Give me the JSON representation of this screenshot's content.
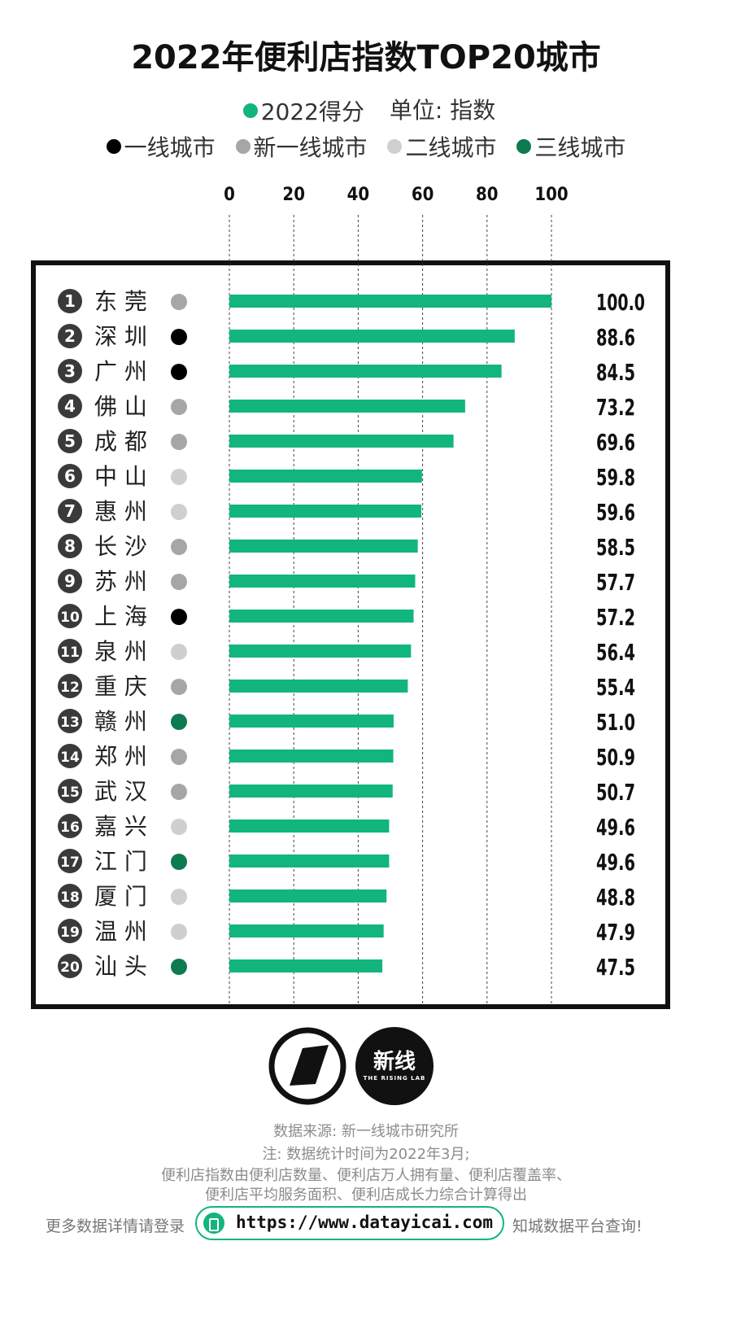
{
  "title": "2022年便利店指数TOP20城市",
  "legend": {
    "score_label": "2022得分",
    "unit_label": "单位: 指数",
    "tiers": [
      {
        "label": "一线城市",
        "color": "#000000"
      },
      {
        "label": "新一线城市",
        "color": "#a6a6a6"
      },
      {
        "label": "二线城市",
        "color": "#cfcfcf"
      },
      {
        "label": "三线城市",
        "color": "#0e7a50"
      }
    ]
  },
  "colors": {
    "bar": "#12b57c",
    "frame": "#111111",
    "rank_badge": "#3a3a3a"
  },
  "chart_data": {
    "type": "bar",
    "orientation": "horizontal",
    "title": "2022年便利店指数TOP20城市",
    "series": [
      {
        "name": "2022得分",
        "values": [
          100.0,
          88.6,
          84.5,
          73.2,
          69.6,
          59.8,
          59.6,
          58.5,
          57.7,
          57.2,
          56.4,
          55.4,
          51.0,
          50.9,
          50.7,
          49.6,
          49.6,
          48.8,
          47.9,
          47.5
        ]
      }
    ],
    "categories": [
      "东 莞",
      "深 圳",
      "广 州",
      "佛 山",
      "成 都",
      "中 山",
      "惠 州",
      "长 沙",
      "苏 州",
      "上 海",
      "泉 州",
      "重 庆",
      "赣 州",
      "郑 州",
      "武 汉",
      "嘉 兴",
      "江 门",
      "厦 门",
      "温 州",
      "汕 头"
    ],
    "ranks": [
      "1",
      "2",
      "3",
      "4",
      "5",
      "6",
      "7",
      "8",
      "9",
      "10",
      "11",
      "12",
      "13",
      "14",
      "15",
      "16",
      "17",
      "18",
      "19",
      "20"
    ],
    "value_labels": [
      "100.0",
      "88.6",
      "84.5",
      "73.2",
      "69.6",
      "59.8",
      "59.6",
      "58.5",
      "57.7",
      "57.2",
      "56.4",
      "55.4",
      "51.0",
      "50.9",
      "50.7",
      "49.6",
      "49.6",
      "48.8",
      "47.9",
      "47.5"
    ],
    "tier_index": [
      1,
      0,
      0,
      1,
      1,
      2,
      2,
      1,
      1,
      0,
      2,
      1,
      3,
      1,
      1,
      2,
      3,
      2,
      2,
      3
    ],
    "x_ticks": [
      0,
      20,
      40,
      60,
      80,
      100
    ],
    "x_tick_labels": [
      "0",
      "20",
      "40",
      "60",
      "80",
      "100"
    ],
    "xlim": [
      0,
      100
    ],
    "grid": "vertical dashed"
  },
  "footer": {
    "logo_text": "新线",
    "logo_sub": "THE RISING LAB",
    "source": "数据来源: 新一线城市研究所",
    "note": "注: 数据统计时间为2022年3月;",
    "method_line1": "便利店指数由便利店数量、便利店万人拥有量、便利店覆盖率、",
    "method_line2": "便利店平均服务面积、便利店成长力综合计算得出",
    "url_prefix": "更多数据详情请登录",
    "url": "https://www.datayicai.com",
    "url_suffix": "知城数据平台查询!"
  }
}
